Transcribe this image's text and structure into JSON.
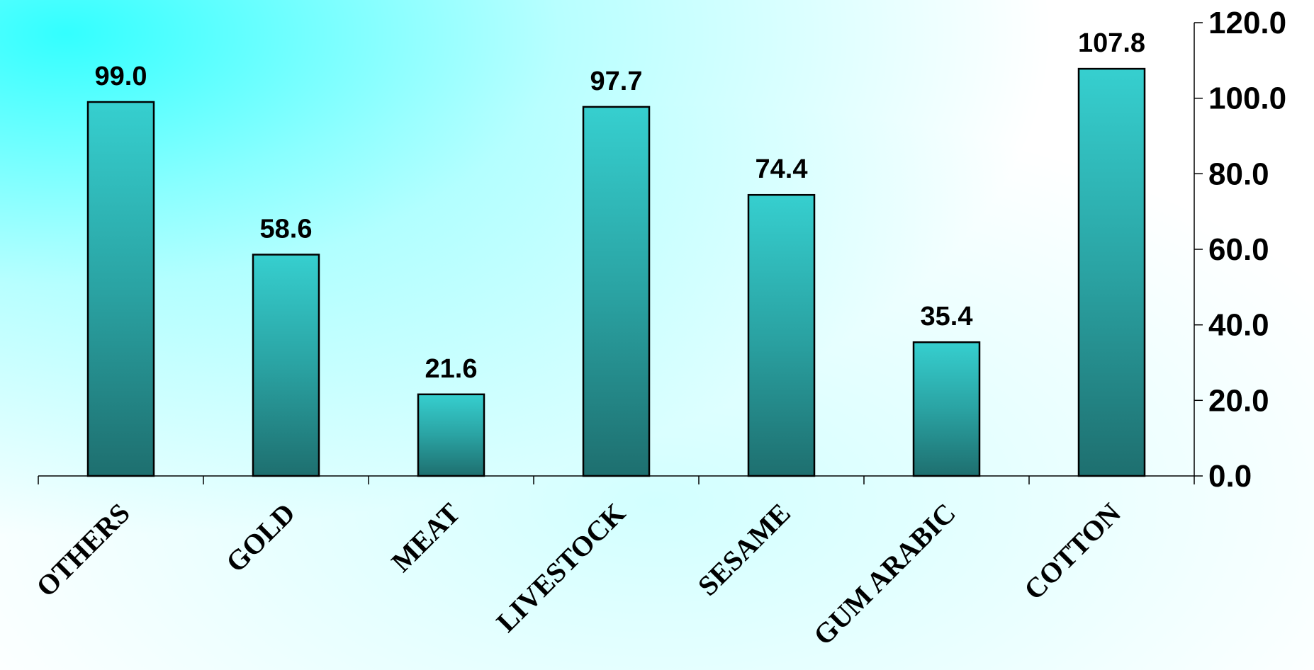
{
  "chart_data": {
    "type": "bar",
    "categories": [
      "OTHERS",
      "GOLD",
      "MEAT",
      "LIVESTOCK",
      "SESAME",
      "GUM ARABIC",
      "COTTON"
    ],
    "values": [
      99.0,
      58.6,
      21.6,
      97.7,
      74.4,
      35.4,
      107.8
    ],
    "data_labels": [
      "99.0",
      "58.6",
      "21.6",
      "97.7",
      "74.4",
      "35.4",
      "107.8"
    ],
    "ylim": [
      0,
      120
    ],
    "yticks": [
      "0.0",
      "20.0",
      "40.0",
      "60.0",
      "80.0",
      "100.0",
      "120.0"
    ],
    "y_axis_side": "right",
    "grid": false,
    "colors": {
      "bar_top": "#36CFCF",
      "bar_bottom": "#1E6F6F",
      "bar_border": "#000000",
      "background_accent": "#33FFFF",
      "background_base": "#FFFFFF"
    }
  }
}
